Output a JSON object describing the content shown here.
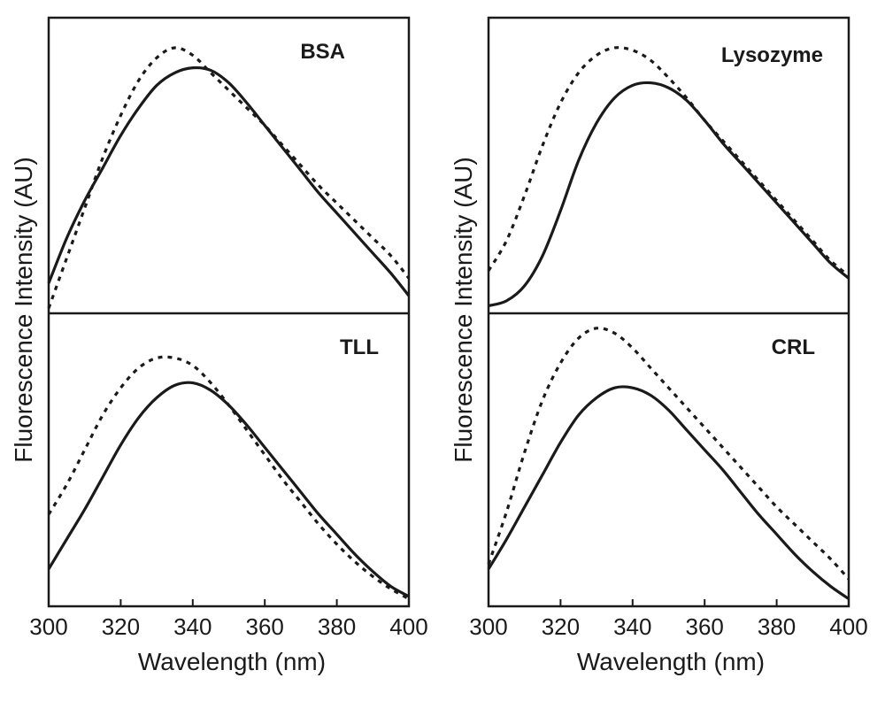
{
  "chart_data": [
    {
      "type": "line",
      "title": "BSA",
      "xlabel": "Wavelength (nm)",
      "ylabel": "Fluorescence Intensity (AU)",
      "xlim": [
        300,
        400
      ],
      "x_ticks": [
        "300",
        "320",
        "340",
        "360",
        "380",
        "400"
      ],
      "series": [
        {
          "style": "solid",
          "x": [
            300,
            305,
            310,
            315,
            320,
            325,
            330,
            335,
            340,
            345,
            350,
            355,
            360,
            365,
            370,
            375,
            380,
            385,
            390,
            395,
            400
          ],
          "y": [
            0.12,
            0.3,
            0.45,
            0.58,
            0.71,
            0.82,
            0.91,
            0.96,
            0.98,
            0.97,
            0.92,
            0.84,
            0.75,
            0.66,
            0.57,
            0.48,
            0.4,
            0.32,
            0.24,
            0.16,
            0.07
          ]
        },
        {
          "style": "dotted",
          "x": [
            300,
            305,
            310,
            315,
            320,
            325,
            330,
            335,
            340,
            345,
            350,
            355,
            360,
            365,
            370,
            375,
            380,
            385,
            390,
            395,
            400
          ],
          "y": [
            0.02,
            0.22,
            0.42,
            0.62,
            0.79,
            0.93,
            1.02,
            1.06,
            1.03,
            0.96,
            0.89,
            0.82,
            0.75,
            0.67,
            0.59,
            0.51,
            0.44,
            0.37,
            0.3,
            0.23,
            0.14
          ]
        }
      ]
    },
    {
      "type": "line",
      "title": "Lysozyme",
      "xlabel": "Wavelength (nm)",
      "ylabel": "Fluorescence Intensity (AU)",
      "xlim": [
        300,
        400
      ],
      "x_ticks": [
        "300",
        "320",
        "340",
        "360",
        "380",
        "400"
      ],
      "series": [
        {
          "style": "solid",
          "x": [
            300,
            305,
            310,
            315,
            320,
            325,
            330,
            335,
            340,
            345,
            350,
            355,
            360,
            365,
            370,
            375,
            380,
            385,
            390,
            395,
            400
          ],
          "y": [
            0.03,
            0.05,
            0.11,
            0.23,
            0.41,
            0.61,
            0.76,
            0.86,
            0.91,
            0.92,
            0.9,
            0.85,
            0.77,
            0.68,
            0.6,
            0.52,
            0.44,
            0.36,
            0.28,
            0.2,
            0.14
          ]
        },
        {
          "style": "dotted",
          "x": [
            300,
            305,
            310,
            315,
            320,
            325,
            330,
            335,
            340,
            345,
            350,
            355,
            360,
            365,
            370,
            375,
            380,
            385,
            390,
            395,
            400
          ],
          "y": [
            0.17,
            0.29,
            0.47,
            0.67,
            0.84,
            0.96,
            1.03,
            1.06,
            1.05,
            1.01,
            0.94,
            0.86,
            0.77,
            0.69,
            0.61,
            0.53,
            0.45,
            0.37,
            0.29,
            0.21,
            0.15
          ]
        }
      ]
    },
    {
      "type": "line",
      "title": "TLL",
      "xlabel": "Wavelength (nm)",
      "ylabel": "Fluorescence Intensity (AU)",
      "xlim": [
        300,
        400
      ],
      "x_ticks": [
        "300",
        "320",
        "340",
        "360",
        "380",
        "400"
      ],
      "series": [
        {
          "style": "solid",
          "x": [
            300,
            305,
            310,
            315,
            320,
            325,
            330,
            335,
            340,
            345,
            350,
            355,
            360,
            365,
            370,
            375,
            380,
            385,
            390,
            395,
            400
          ],
          "y": [
            0.15,
            0.27,
            0.39,
            0.52,
            0.65,
            0.76,
            0.84,
            0.89,
            0.9,
            0.87,
            0.81,
            0.73,
            0.64,
            0.55,
            0.46,
            0.37,
            0.29,
            0.21,
            0.14,
            0.08,
            0.04
          ]
        },
        {
          "style": "dotted",
          "x": [
            300,
            305,
            310,
            315,
            320,
            325,
            330,
            335,
            340,
            345,
            350,
            355,
            360,
            365,
            370,
            375,
            380,
            385,
            390,
            395,
            400
          ],
          "y": [
            0.37,
            0.49,
            0.63,
            0.77,
            0.88,
            0.96,
            1.0,
            1.0,
            0.97,
            0.9,
            0.81,
            0.71,
            0.61,
            0.51,
            0.42,
            0.33,
            0.25,
            0.18,
            0.12,
            0.07,
            0.03
          ]
        }
      ]
    },
    {
      "type": "line",
      "title": "CRL",
      "xlabel": "Wavelength (nm)",
      "ylabel": "Fluorescence Intensity (AU)",
      "xlim": [
        300,
        400
      ],
      "x_ticks": [
        "300",
        "320",
        "340",
        "360",
        "380",
        "400"
      ],
      "series": [
        {
          "style": "solid",
          "x": [
            300,
            305,
            310,
            315,
            320,
            325,
            330,
            335,
            340,
            345,
            350,
            355,
            360,
            365,
            370,
            375,
            380,
            385,
            390,
            395,
            400
          ],
          "y": [
            0.15,
            0.27,
            0.4,
            0.53,
            0.66,
            0.77,
            0.84,
            0.88,
            0.88,
            0.85,
            0.79,
            0.71,
            0.63,
            0.55,
            0.46,
            0.37,
            0.29,
            0.21,
            0.14,
            0.08,
            0.03
          ]
        },
        {
          "style": "dotted",
          "x": [
            300,
            305,
            310,
            315,
            320,
            325,
            330,
            335,
            340,
            345,
            350,
            355,
            360,
            365,
            370,
            375,
            380,
            385,
            390,
            395,
            400
          ],
          "y": [
            0.17,
            0.38,
            0.62,
            0.83,
            0.98,
            1.08,
            1.12,
            1.1,
            1.04,
            0.96,
            0.88,
            0.8,
            0.72,
            0.64,
            0.56,
            0.48,
            0.4,
            0.33,
            0.26,
            0.19,
            0.11
          ]
        }
      ]
    }
  ]
}
